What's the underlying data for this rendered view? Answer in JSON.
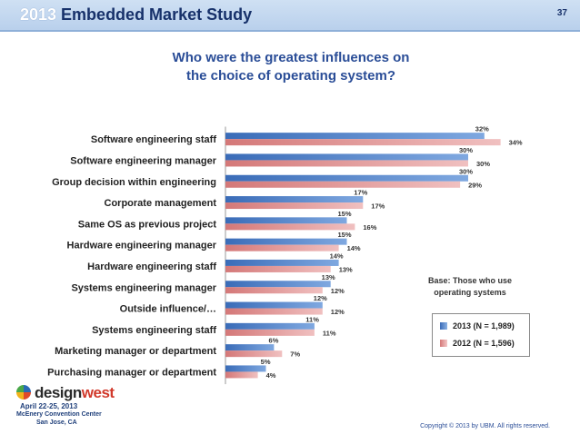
{
  "header": {
    "title_year": "2013",
    "title_text": " Embedded Market Study",
    "page_number": "37"
  },
  "question": {
    "line1": "Who were the greatest influences on",
    "line2": "the choice of operating system?"
  },
  "base_note": {
    "line1": "Base: Those who use",
    "line2": "operating systems"
  },
  "legend": [
    {
      "label": "2013 (N = 1,989)",
      "color": "#4a7ec8"
    },
    {
      "label": "2012 (N = 1,596)",
      "color": "#e09898"
    }
  ],
  "logo": {
    "word_a": "design",
    "word_b": "west",
    "line1": "April 22-25, 2013",
    "line2": "McEnery Convention Center",
    "line3": "San Jose, CA"
  },
  "copyright": "Copyright © 2013 by UBM. All rights reserved.",
  "colors": {
    "series_2013": "#4a7ec8",
    "series_2012": "#e09898",
    "title_blue": "#2a4d97"
  },
  "chart_data": {
    "type": "bar",
    "orientation": "horizontal",
    "xlim": [
      0,
      40
    ],
    "grid": false,
    "legend_position": "right",
    "categories": [
      "Software engineering staff",
      "Software engineering manager",
      "Group decision within engineering",
      "Corporate management",
      "Same OS as previous project",
      "Hardware engineering manager",
      "Hardware engineering staff",
      "Systems engineering manager",
      "Outside influence/…",
      "Systems engineering staff",
      "Marketing manager or department",
      "Purchasing manager or department"
    ],
    "series": [
      {
        "name": "2013 (N = 1,989)",
        "values": [
          32,
          30,
          30,
          17,
          15,
          15,
          14,
          13,
          12,
          11,
          6,
          5
        ]
      },
      {
        "name": "2012 (N = 1,596)",
        "values": [
          34,
          30,
          29,
          17,
          16,
          14,
          13,
          12,
          12,
          11,
          7,
          4
        ]
      }
    ]
  }
}
